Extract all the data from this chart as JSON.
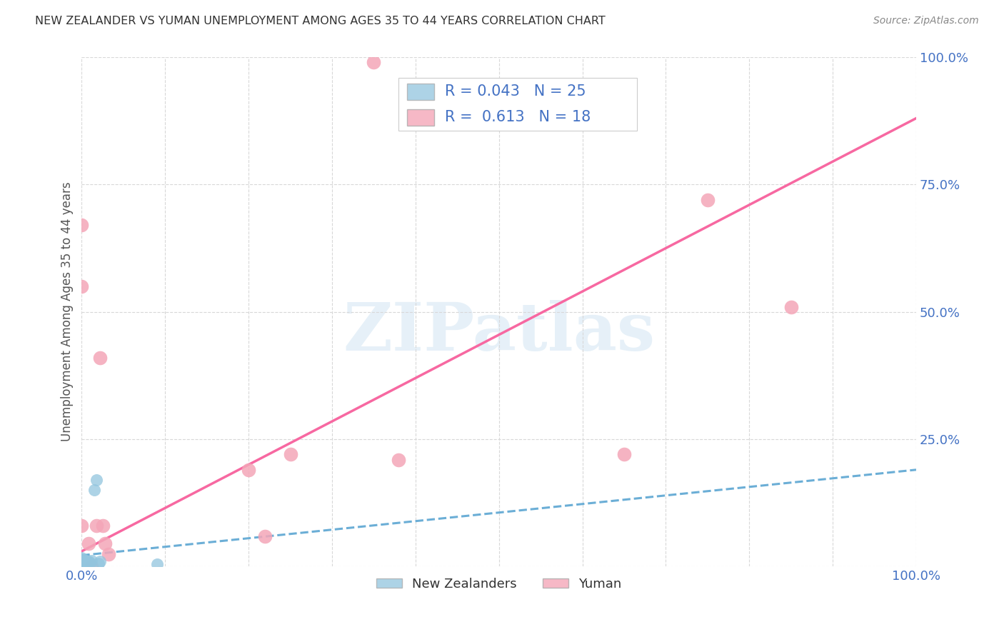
{
  "title": "NEW ZEALANDER VS YUMAN UNEMPLOYMENT AMONG AGES 35 TO 44 YEARS CORRELATION CHART",
  "source": "Source: ZipAtlas.com",
  "ylabel": "Unemployment Among Ages 35 to 44 years",
  "xlim": [
    0.0,
    1.0
  ],
  "ylim": [
    0.0,
    1.0
  ],
  "xticks": [
    0.0,
    0.1,
    0.2,
    0.3,
    0.4,
    0.5,
    0.6,
    0.7,
    0.8,
    0.9,
    1.0
  ],
  "yticks": [
    0.0,
    0.25,
    0.5,
    0.75,
    1.0
  ],
  "xtick_labels": [
    "0.0%",
    "",
    "",
    "",
    "",
    "",
    "",
    "",
    "",
    "",
    "100.0%"
  ],
  "ytick_labels": [
    "",
    "25.0%",
    "50.0%",
    "75.0%",
    "100.0%"
  ],
  "background_color": "#ffffff",
  "grid_color": "#d8d8d8",
  "nz_color": "#92C5DE",
  "yuman_color": "#F4A6B8",
  "nz_line_color": "#6baed6",
  "yuman_line_color": "#f768a1",
  "nz_R": 0.043,
  "nz_N": 25,
  "yuman_R": 0.613,
  "yuman_N": 18,
  "nz_scatter_x": [
    0.0,
    0.0,
    0.0,
    0.0,
    0.0,
    0.0,
    0.0,
    0.0,
    0.0,
    0.0,
    0.0,
    0.0,
    0.0,
    0.0,
    0.005,
    0.005,
    0.007,
    0.008,
    0.01,
    0.012,
    0.015,
    0.018,
    0.02,
    0.022,
    0.09
  ],
  "nz_scatter_y": [
    0.0,
    0.0,
    0.0,
    0.002,
    0.003,
    0.005,
    0.006,
    0.007,
    0.008,
    0.01,
    0.012,
    0.013,
    0.015,
    0.018,
    0.008,
    0.012,
    0.006,
    0.01,
    0.008,
    0.012,
    0.15,
    0.17,
    0.006,
    0.01,
    0.005
  ],
  "yuman_scatter_x": [
    0.0,
    0.0,
    0.0,
    0.008,
    0.012,
    0.018,
    0.022,
    0.025,
    0.028,
    0.032,
    0.2,
    0.22,
    0.25,
    0.35,
    0.38,
    0.65,
    0.75,
    0.85
  ],
  "yuman_scatter_y": [
    0.67,
    0.55,
    0.08,
    0.045,
    0.0,
    0.08,
    0.41,
    0.08,
    0.045,
    0.025,
    0.19,
    0.06,
    0.22,
    0.99,
    0.21,
    0.22,
    0.72,
    0.51
  ],
  "nz_line_x0": 0.0,
  "nz_line_x1": 1.0,
  "nz_line_y0": 0.022,
  "nz_line_y1": 0.19,
  "yuman_line_x0": 0.0,
  "yuman_line_x1": 1.0,
  "yuman_line_y0": 0.03,
  "yuman_line_y1": 0.88,
  "legend_nz_label": "New Zealanders",
  "legend_yuman_label": "Yuman",
  "watermark": "ZIPatlas",
  "title_color": "#333333",
  "axis_label_color": "#555555",
  "tick_color": "#4472c4",
  "legend_text_color": "#4472c4"
}
